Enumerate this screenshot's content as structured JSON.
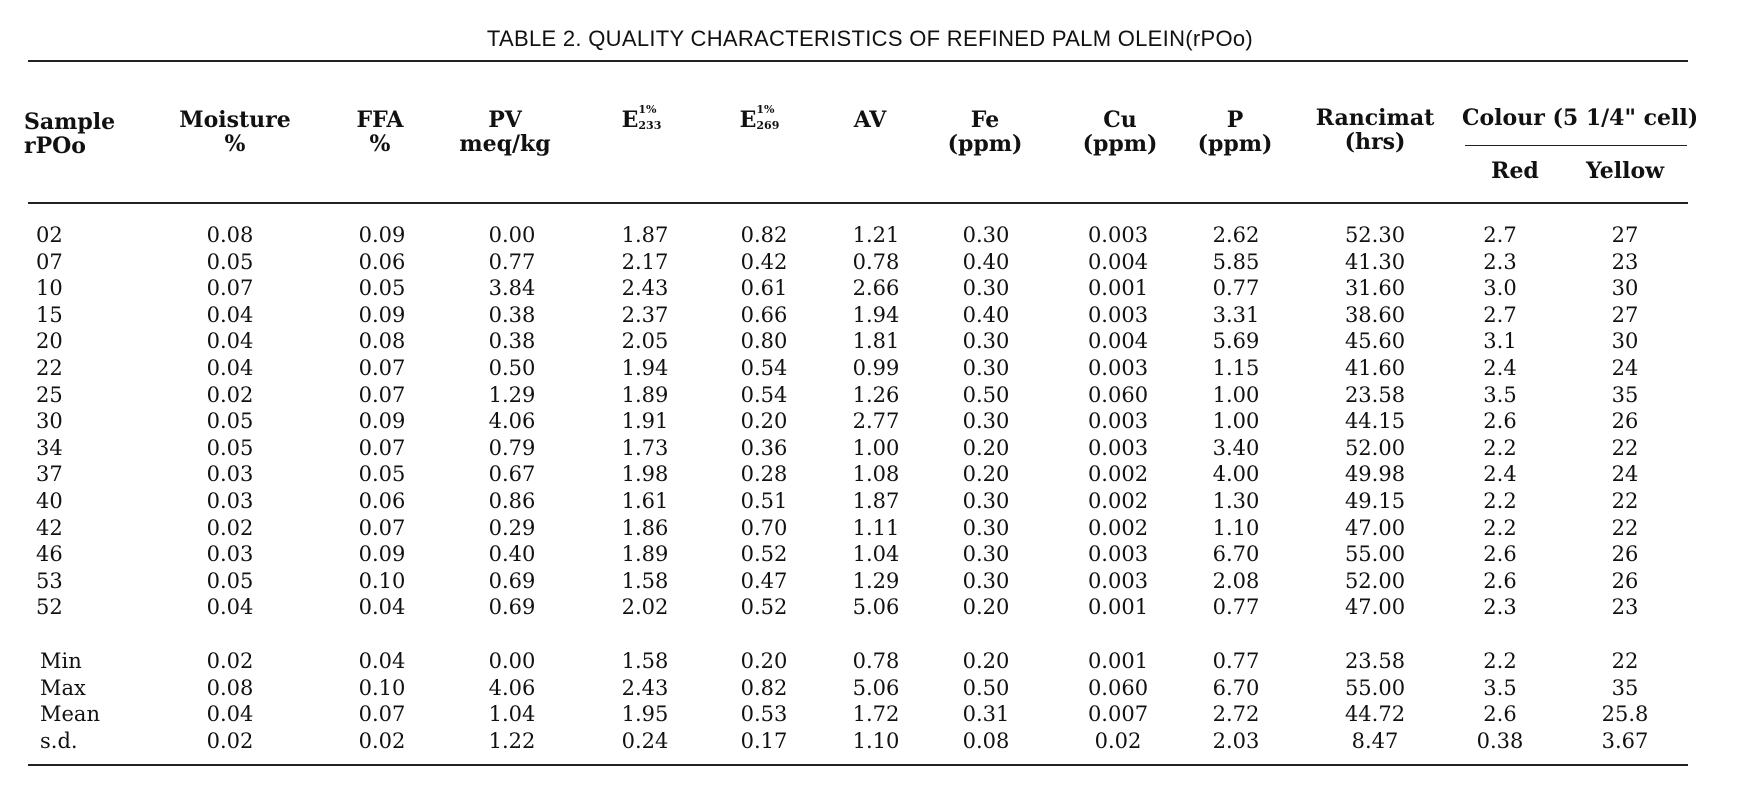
{
  "title": "TABLE 2.  QUALITY CHARACTERISTICS OF REFINED PALM OLEIN(rPOo)",
  "headers": {
    "sample": [
      "Sample",
      "rPOo"
    ],
    "moisture": [
      "Moisture",
      "%"
    ],
    "ffa": [
      "FFA",
      "%"
    ],
    "pv": [
      "PV",
      "meq/kg"
    ],
    "e233": {
      "base": "E",
      "sup": "1%",
      "sub": "233"
    },
    "e269": {
      "base": "E",
      "sup": "1%",
      "sub": "269"
    },
    "av": [
      "AV"
    ],
    "fe": [
      "Fe",
      "(ppm)"
    ],
    "cu": [
      "Cu",
      "(ppm)"
    ],
    "p": [
      "P",
      "(ppm)"
    ],
    "rancimat": [
      "Rancimat",
      "(hrs)"
    ],
    "colour": "Colour (5 1/4\" cell)",
    "red": "Red",
    "yellow": "Yellow"
  },
  "rows": [
    [
      "02",
      "0.08",
      "0.09",
      "0.00",
      "1.87",
      "0.82",
      "1.21",
      "0.30",
      "0.003",
      "2.62",
      "52.30",
      "2.7",
      "27"
    ],
    [
      "07",
      "0.05",
      "0.06",
      "0.77",
      "2.17",
      "0.42",
      "0.78",
      "0.40",
      "0.004",
      "5.85",
      "41.30",
      "2.3",
      "23"
    ],
    [
      "10",
      "0.07",
      "0.05",
      "3.84",
      "2.43",
      "0.61",
      "2.66",
      "0.30",
      "0.001",
      "0.77",
      "31.60",
      "3.0",
      "30"
    ],
    [
      "15",
      "0.04",
      "0.09",
      "0.38",
      "2.37",
      "0.66",
      "1.94",
      "0.40",
      "0.003",
      "3.31",
      "38.60",
      "2.7",
      "27"
    ],
    [
      "20",
      "0.04",
      "0.08",
      "0.38",
      "2.05",
      "0.80",
      "1.81",
      "0.30",
      "0.004",
      "5.69",
      "45.60",
      "3.1",
      "30"
    ],
    [
      "22",
      "0.04",
      "0.07",
      "0.50",
      "1.94",
      "0.54",
      "0.99",
      "0.30",
      "0.003",
      "1.15",
      "41.60",
      "2.4",
      "24"
    ],
    [
      "25",
      "0.02",
      "0.07",
      "1.29",
      "1.89",
      "0.54",
      "1.26",
      "0.50",
      "0.060",
      "1.00",
      "23.58",
      "3.5",
      "35"
    ],
    [
      "30",
      "0.05",
      "0.09",
      "4.06",
      "1.91",
      "0.20",
      "2.77",
      "0.30",
      "0.003",
      "1.00",
      "44.15",
      "2.6",
      "26"
    ],
    [
      "34",
      "0.05",
      "0.07",
      "0.79",
      "1.73",
      "0.36",
      "1.00",
      "0.20",
      "0.003",
      "3.40",
      "52.00",
      "2.2",
      "22"
    ],
    [
      "37",
      "0.03",
      "0.05",
      "0.67",
      "1.98",
      "0.28",
      "1.08",
      "0.20",
      "0.002",
      "4.00",
      "49.98",
      "2.4",
      "24"
    ],
    [
      "40",
      "0.03",
      "0.06",
      "0.86",
      "1.61",
      "0.51",
      "1.87",
      "0.30",
      "0.002",
      "1.30",
      "49.15",
      "2.2",
      "22"
    ],
    [
      "42",
      "0.02",
      "0.07",
      "0.29",
      "1.86",
      "0.70",
      "1.11",
      "0.30",
      "0.002",
      "1.10",
      "47.00",
      "2.2",
      "22"
    ],
    [
      "46",
      "0.03",
      "0.09",
      "0.40",
      "1.89",
      "0.52",
      "1.04",
      "0.30",
      "0.003",
      "6.70",
      "55.00",
      "2.6",
      "26"
    ],
    [
      "53",
      "0.05",
      "0.10",
      "0.69",
      "1.58",
      "0.47",
      "1.29",
      "0.30",
      "0.003",
      "2.08",
      "52.00",
      "2.6",
      "26"
    ],
    [
      "52",
      "0.04",
      "0.04",
      "0.69",
      "2.02",
      "0.52",
      "5.06",
      "0.20",
      "0.001",
      "0.77",
      "47.00",
      "2.3",
      "23"
    ]
  ],
  "summary": [
    [
      "Min",
      "0.02",
      "0.04",
      "0.00",
      "1.58",
      "0.20",
      "0.78",
      "0.20",
      "0.001",
      "0.77",
      "23.58",
      "2.2",
      "22"
    ],
    [
      "Max",
      "0.08",
      "0.10",
      "4.06",
      "2.43",
      "0.82",
      "5.06",
      "0.50",
      "0.060",
      "6.70",
      "55.00",
      "3.5",
      "35"
    ],
    [
      "Mean",
      "0.04",
      "0.07",
      "1.04",
      "1.95",
      "0.53",
      "1.72",
      "0.31",
      "0.007",
      "2.72",
      "44.72",
      "2.6",
      "25.8"
    ],
    [
      "s.d.",
      "0.02",
      "0.02",
      "1.22",
      "0.24",
      "0.17",
      "1.10",
      "0.08",
      "0.02",
      "2.03",
      "8.47",
      "0.38",
      "3.67"
    ]
  ]
}
